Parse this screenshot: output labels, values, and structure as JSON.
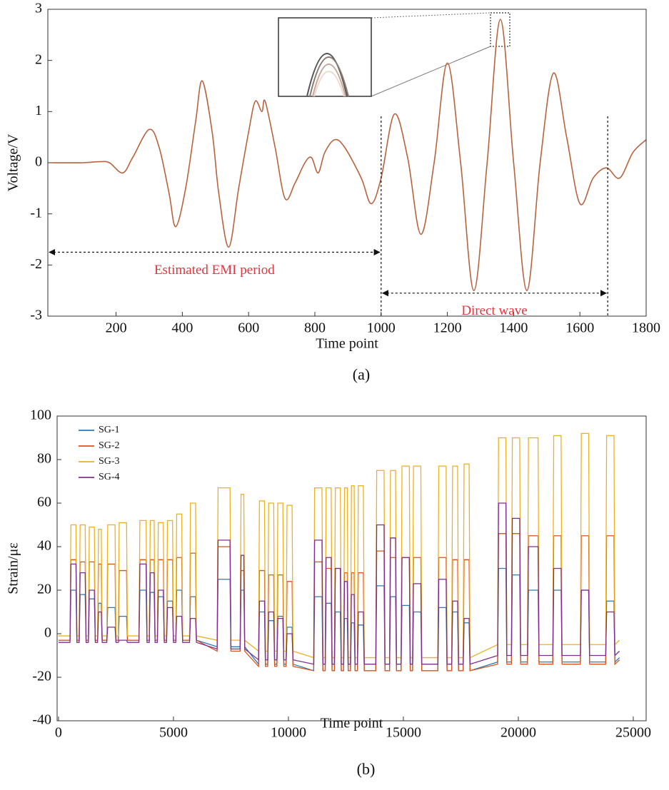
{
  "chart_data": [
    {
      "type": "line",
      "caption": "(a)",
      "xlabel": "Time point",
      "ylabel": "Voltage/V",
      "xlim": [
        -6,
        1800
      ],
      "ylim": [
        -3,
        3
      ],
      "xticks": [
        200,
        400,
        600,
        800,
        1000,
        1200,
        1400,
        1600,
        1800
      ],
      "yticks": [
        -3,
        -2,
        -1,
        0,
        1,
        2,
        3
      ],
      "smooth": true,
      "color": "#b8623e",
      "x": [
        0,
        100,
        150,
        180,
        220,
        250,
        300,
        330,
        360,
        380,
        410,
        440,
        460,
        490,
        510,
        540,
        570,
        600,
        620,
        640,
        650,
        680,
        710,
        740,
        770,
        790,
        810,
        830,
        860,
        890,
        940,
        970,
        1000,
        1040,
        1080,
        1120,
        1160,
        1200,
        1240,
        1280,
        1320,
        1360,
        1400,
        1440,
        1480,
        1520,
        1560,
        1600,
        1640,
        1680,
        1720,
        1760,
        1800
      ],
      "values": [
        0,
        0,
        0.02,
        0,
        -0.2,
        0.1,
        0.65,
        0.3,
        -0.6,
        -1.25,
        -0.5,
        0.8,
        1.6,
        0.6,
        -0.6,
        -1.65,
        -0.5,
        0.6,
        1.2,
        1.0,
        1.2,
        0.3,
        -0.7,
        -0.4,
        0,
        0.1,
        -0.2,
        0.2,
        0.45,
        0.3,
        -0.3,
        -0.8,
        -0.3,
        0.95,
        0.1,
        -1.4,
        0,
        1.95,
        0,
        -2.5,
        0,
        2.8,
        0,
        -2.5,
        0,
        1.75,
        0.5,
        -0.8,
        -0.3,
        -0.1,
        -0.3,
        0.2,
        0.45
      ],
      "vlines": [
        1000,
        1684
      ],
      "annotations": [
        {
          "text": "Estimated EMI period",
          "x": [
            -6,
            1000
          ],
          "y": -1.75
        },
        {
          "text": "Direct wave",
          "x": [
            1000,
            1684
          ],
          "y": -2.55
        }
      ]
    },
    {
      "type": "line",
      "caption": "(b)",
      "xlabel": "Time point",
      "ylabel": "Strain/με",
      "xlim": [
        -60,
        25560
      ],
      "ylim": [
        -40,
        100
      ],
      "xticks": [
        0,
        5000,
        10000,
        15000,
        20000,
        25000
      ],
      "yticks": [
        -40,
        -20,
        0,
        20,
        40,
        60,
        80,
        100
      ],
      "legend": "upper left",
      "x": [
        0,
        500,
        540,
        760,
        800,
        900,
        940,
        1160,
        1200,
        1300,
        1340,
        1560,
        1600,
        1700,
        1740,
        1860,
        1900,
        2100,
        2140,
        2460,
        2500,
        2600,
        2640,
        2960,
        3000,
        3500,
        3540,
        3810,
        3850,
        3950,
        3990,
        4160,
        4200,
        4300,
        4340,
        4560,
        4600,
        4700,
        4740,
        4960,
        5000,
        5100,
        5140,
        5360,
        5400,
        5700,
        5740,
        5960,
        6000,
        6900,
        6940,
        7460,
        7500,
        7900,
        7940,
        8060,
        8100,
        8700,
        8740,
        8960,
        9000,
        9100,
        9140,
        9360,
        9400,
        9500,
        9540,
        9760,
        9800,
        9900,
        9940,
        10160,
        10200,
        11100,
        11140,
        11460,
        11500,
        11600,
        11640,
        11860,
        11900,
        12000,
        12040,
        12260,
        12300,
        12400,
        12440,
        12560,
        12600,
        12700,
        12740,
        12860,
        12900,
        13000,
        13040,
        13260,
        13300,
        13800,
        13840,
        14160,
        14200,
        14400,
        14440,
        14660,
        14700,
        14900,
        14940,
        15260,
        15300,
        15400,
        15440,
        15760,
        15800,
        16500,
        16540,
        16860,
        16900,
        17100,
        17140,
        17360,
        17400,
        17600,
        17640,
        17860,
        17900,
        19100,
        19140,
        19460,
        19500,
        19700,
        19740,
        20060,
        20100,
        20400,
        20440,
        20860,
        20900,
        21500,
        21540,
        21860,
        21900,
        22700,
        22740,
        23060,
        23100,
        23800,
        23840,
        24160,
        24200,
        24400
      ],
      "series": [
        {
          "name": "SG-1",
          "color": "#2a7ab8",
          "values": [
            -3,
            -3,
            20,
            20,
            -3,
            -3,
            18,
            18,
            -3,
            -3,
            16,
            16,
            -3,
            -3,
            14,
            14,
            -3,
            -3,
            12,
            12,
            -3,
            -3,
            8,
            8,
            -3,
            -3,
            20,
            20,
            -3,
            -3,
            19,
            19,
            -3,
            -3,
            17,
            17,
            -3,
            -3,
            15,
            15,
            -3,
            -3,
            20,
            20,
            -3,
            -3,
            17,
            17,
            -3,
            -6,
            25,
            25,
            -6,
            -6,
            20,
            20,
            -6,
            -14,
            10,
            10,
            -14,
            -14,
            6,
            6,
            -14,
            -14,
            8,
            8,
            -14,
            -14,
            3,
            3,
            -14,
            -17,
            17,
            17,
            -17,
            -17,
            14,
            14,
            -17,
            -17,
            10,
            10,
            -17,
            -17,
            7,
            7,
            -17,
            -17,
            5,
            5,
            -17,
            -17,
            4,
            4,
            -17,
            -17,
            22,
            22,
            -17,
            -17,
            17,
            17,
            -17,
            -17,
            13,
            13,
            -17,
            -17,
            10,
            10,
            -17,
            -17,
            12,
            12,
            -17,
            -17,
            10,
            10,
            -17,
            -17,
            5,
            5,
            -17,
            -13,
            30,
            30,
            -13,
            -13,
            27,
            27,
            -13,
            -13,
            20,
            20,
            -13,
            -13,
            20,
            20,
            -13,
            -13,
            20,
            20,
            -13,
            -13,
            15,
            15,
            -13,
            -11
          ]
        },
        {
          "name": "SG-2",
          "color": "#d95319",
          "values": [
            -3,
            -3,
            34,
            34,
            -3,
            -3,
            33,
            33,
            -3,
            -3,
            33,
            33,
            -3,
            -3,
            32,
            32,
            -3,
            -3,
            32,
            32,
            -3,
            -3,
            29,
            29,
            -3,
            -3,
            34,
            34,
            -3,
            -3,
            34,
            34,
            -3,
            -3,
            34,
            34,
            -3,
            -3,
            34,
            34,
            -3,
            -3,
            35,
            35,
            -3,
            -3,
            37,
            37,
            -3,
            -8,
            40,
            40,
            -8,
            -8,
            29,
            29,
            -8,
            -15,
            29,
            29,
            -15,
            -15,
            27,
            27,
            -15,
            -15,
            27,
            27,
            -15,
            -15,
            24,
            24,
            -15,
            -17,
            33,
            33,
            -17,
            -17,
            30,
            30,
            -17,
            -17,
            30,
            30,
            -17,
            -17,
            28,
            28,
            -17,
            -17,
            28,
            28,
            -17,
            -17,
            28,
            28,
            -17,
            -17,
            38,
            38,
            -17,
            -17,
            35,
            35,
            -17,
            -17,
            35,
            35,
            -17,
            -17,
            35,
            35,
            -17,
            -17,
            35,
            35,
            -17,
            -17,
            34,
            34,
            -17,
            -17,
            34,
            34,
            -17,
            -14,
            46,
            46,
            -14,
            -14,
            46,
            46,
            -14,
            -14,
            45,
            45,
            -14,
            -14,
            45,
            45,
            -14,
            -14,
            45,
            45,
            -14,
            -14,
            45,
            45,
            -14,
            -12
          ]
        },
        {
          "name": "SG-3",
          "color": "#edb120",
          "values": [
            -1,
            -1,
            50,
            50,
            -1,
            -1,
            50,
            50,
            -1,
            -1,
            49,
            49,
            -1,
            -1,
            48,
            48,
            -1,
            -1,
            50,
            50,
            -1,
            -1,
            51,
            51,
            -1,
            -1,
            52,
            52,
            -1,
            -1,
            52,
            52,
            -1,
            -1,
            51,
            51,
            -1,
            -1,
            52,
            52,
            -1,
            -1,
            55,
            55,
            -1,
            -1,
            60,
            60,
            -1,
            -3,
            67,
            67,
            -3,
            -3,
            64,
            64,
            -3,
            -8,
            61,
            61,
            -8,
            -8,
            60,
            60,
            -8,
            -8,
            60,
            60,
            -8,
            -8,
            59,
            59,
            -8,
            -11,
            67,
            67,
            -11,
            -11,
            67,
            67,
            -11,
            -11,
            67,
            67,
            -11,
            -11,
            67,
            67,
            -11,
            -11,
            68,
            68,
            -11,
            -11,
            68,
            68,
            -11,
            -11,
            75,
            75,
            -11,
            -11,
            75,
            75,
            -11,
            -11,
            77,
            77,
            -11,
            -11,
            77,
            77,
            -11,
            -11,
            77,
            77,
            -11,
            -11,
            77,
            77,
            -11,
            -11,
            78,
            78,
            -11,
            -5,
            90,
            90,
            -5,
            -5,
            90,
            90,
            -5,
            -5,
            90,
            90,
            -5,
            -5,
            91,
            91,
            -5,
            -5,
            92,
            92,
            -5,
            -5,
            91,
            91,
            -5,
            -3
          ]
        },
        {
          "name": "SG-4",
          "color": "#7e2f8e",
          "values": [
            -4,
            -4,
            32,
            32,
            -4,
            -4,
            28,
            28,
            -4,
            -4,
            20,
            20,
            -4,
            -4,
            10,
            10,
            -4,
            -4,
            3,
            3,
            -4,
            -4,
            -3,
            -3,
            -4,
            -4,
            32,
            32,
            -4,
            -4,
            28,
            28,
            -4,
            -4,
            20,
            20,
            -4,
            -4,
            12,
            12,
            -4,
            -4,
            8,
            8,
            -4,
            -4,
            7,
            7,
            -4,
            -7,
            43,
            43,
            -7,
            -7,
            36,
            36,
            -7,
            -12,
            15,
            15,
            -12,
            -12,
            10,
            10,
            -12,
            -12,
            7,
            7,
            -12,
            -12,
            0,
            0,
            -12,
            -14,
            43,
            43,
            -14,
            -14,
            35,
            35,
            -14,
            -14,
            30,
            30,
            -14,
            -14,
            24,
            24,
            -14,
            -14,
            18,
            18,
            -14,
            -14,
            10,
            10,
            -14,
            -14,
            50,
            50,
            -14,
            -14,
            44,
            44,
            -14,
            -14,
            35,
            35,
            -14,
            -14,
            23,
            23,
            -14,
            -14,
            25,
            25,
            -14,
            -14,
            15,
            15,
            -14,
            -14,
            7,
            7,
            -14,
            -10,
            60,
            60,
            -10,
            -10,
            53,
            53,
            -10,
            -10,
            40,
            40,
            -10,
            -10,
            30,
            30,
            -10,
            -10,
            20,
            20,
            -10,
            -10,
            10,
            10,
            -10,
            -8
          ]
        }
      ]
    }
  ]
}
